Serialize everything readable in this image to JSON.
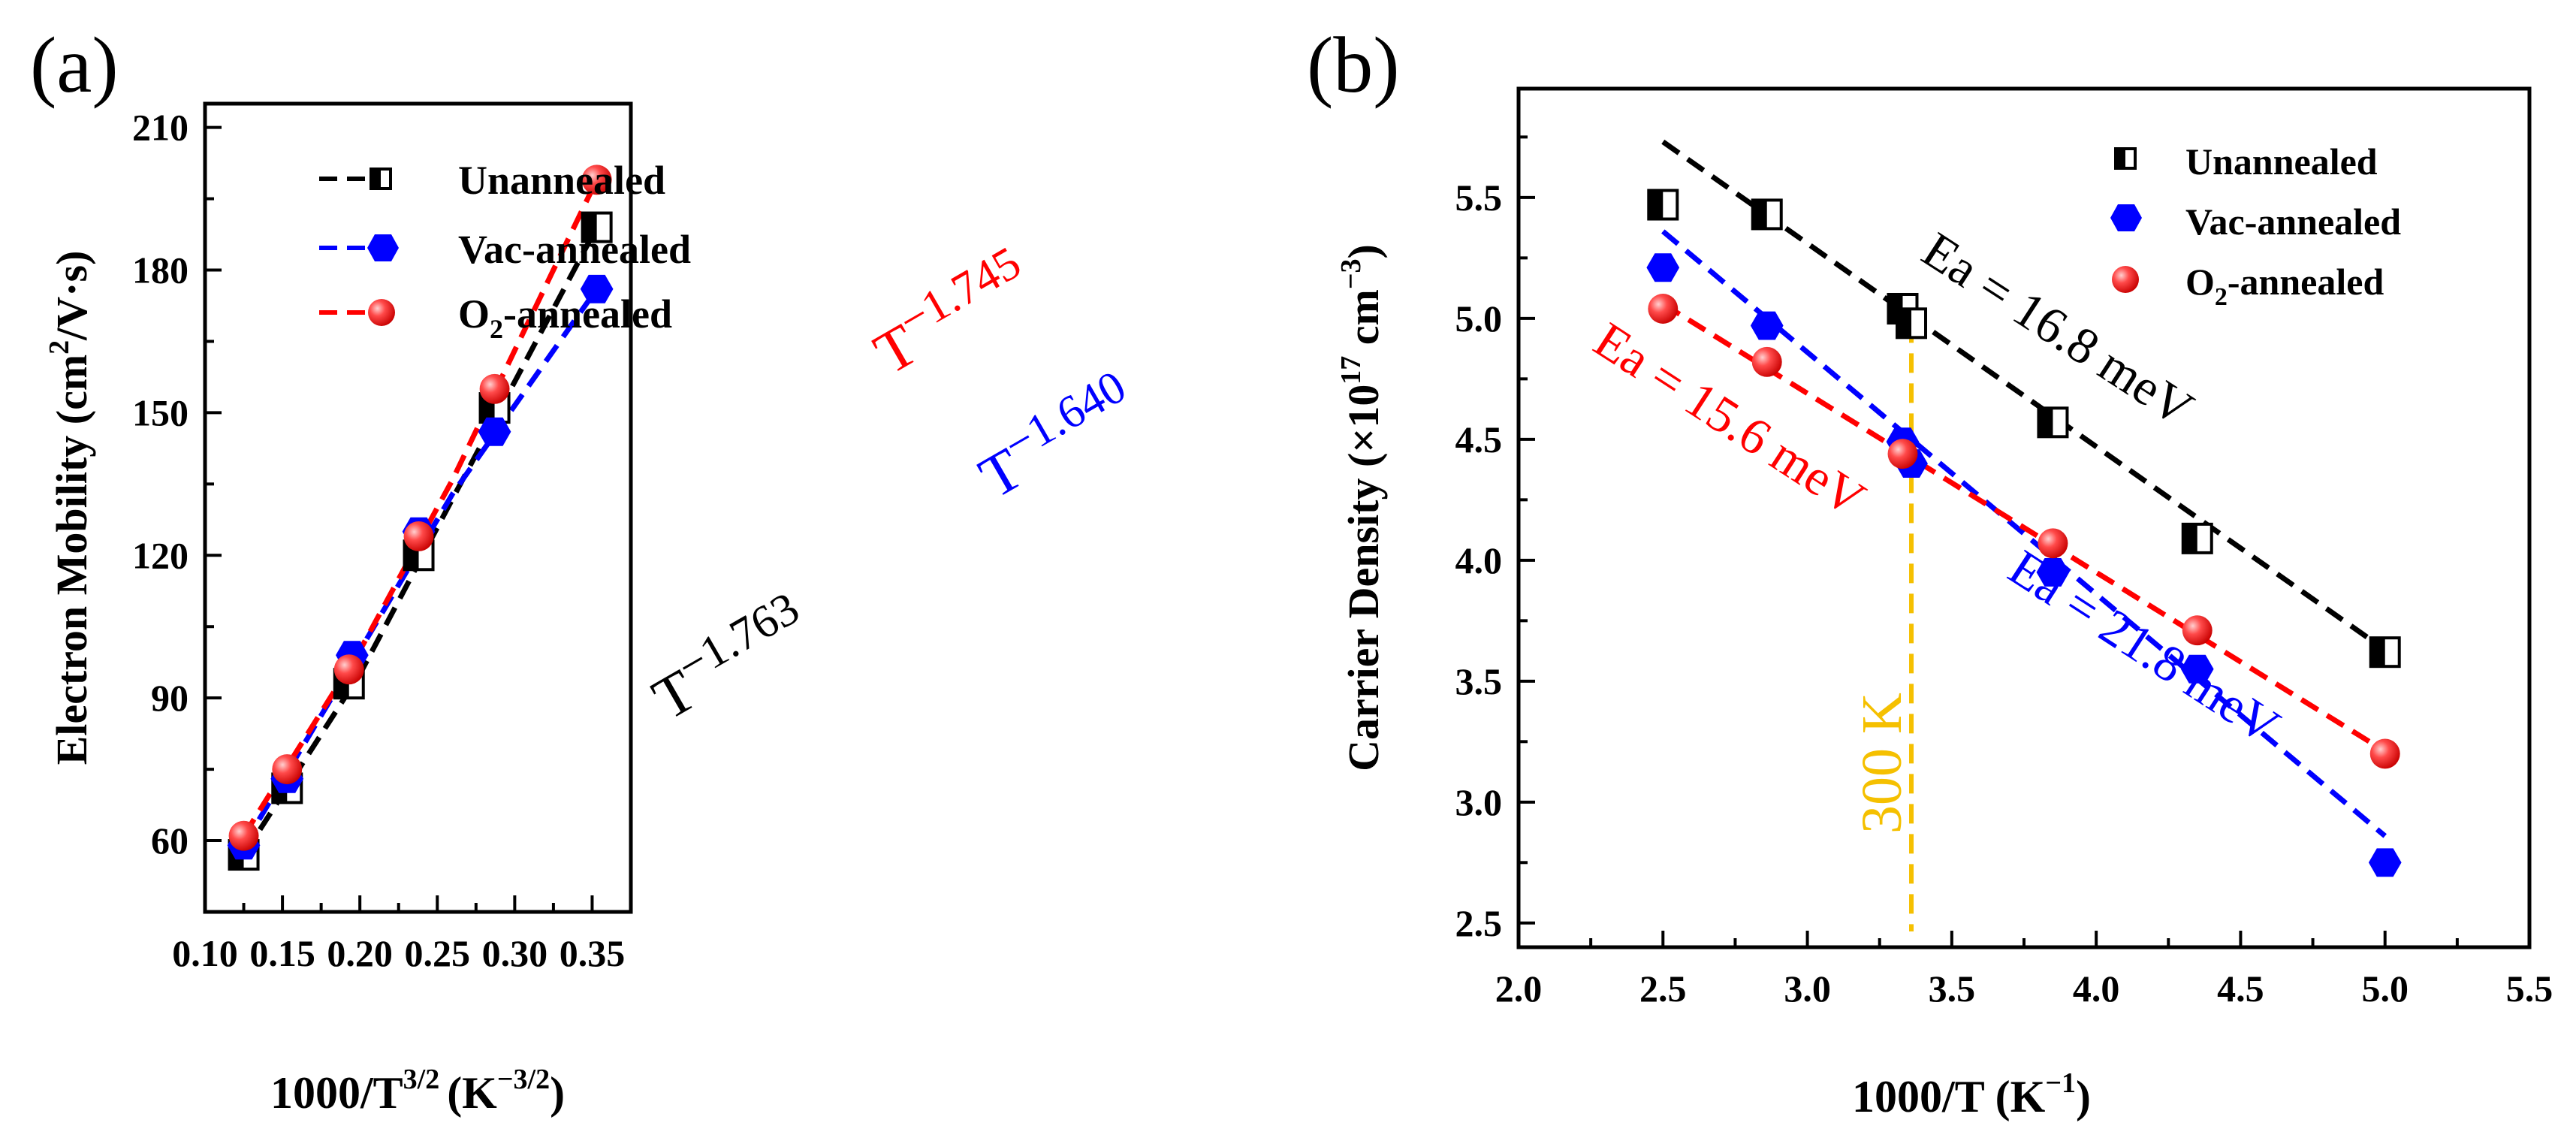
{
  "chart_data": [
    {
      "panel_label": "(a)",
      "type": "scatter",
      "xlabel": "1000/T",
      "xlabel_sup": "3/2",
      "xlabel_unit": "(K",
      "xlabel_unit_sup": "−3/2",
      "xlabel_unit_close": ")",
      "ylabel": "Electron Mobility  (cm",
      "ylabel_sup": "2",
      "ylabel_tail": "/V·s)",
      "xlim": [
        0.1,
        0.375
      ],
      "ylim": [
        45,
        215
      ],
      "xticks": [
        0.1,
        0.15,
        0.2,
        0.25,
        0.3,
        0.35
      ],
      "xtick_labels": [
        "0.10",
        "0.15",
        "0.20",
        "0.25",
        "0.30",
        "0.35"
      ],
      "yticks": [
        60,
        90,
        120,
        150,
        180,
        210
      ],
      "ytick_labels": [
        "60",
        "90",
        "120",
        "150",
        "180",
        "210"
      ],
      "legend_position": "top-left",
      "series": [
        {
          "name": "Unannealed",
          "color": "#000000",
          "marker": "half-square",
          "x": [
            0.125,
            0.153,
            0.193,
            0.238,
            0.287,
            0.353
          ],
          "y": [
            57,
            71,
            93,
            120,
            151,
            189
          ],
          "fit_x": [
            0.125,
            0.2,
            0.26,
            0.353
          ],
          "fit_y": [
            57,
            95,
            132,
            189
          ]
        },
        {
          "name": "Vac-annealed",
          "color": "#0000ff",
          "marker": "hexagon",
          "x": [
            0.125,
            0.153,
            0.195,
            0.238,
            0.287,
            0.353
          ],
          "y": [
            59,
            73,
            99,
            125,
            146,
            176
          ],
          "fit_x": [
            0.125,
            0.2,
            0.26,
            0.353
          ],
          "fit_y": [
            59,
            100,
            133,
            176
          ]
        },
        {
          "name": "O",
          "name_sub": "2",
          "name_tail": "-annealed",
          "color": "#ff0000",
          "marker": "sphere",
          "x": [
            0.125,
            0.153,
            0.193,
            0.238,
            0.287,
            0.353
          ],
          "y": [
            61,
            75,
            96,
            124,
            155,
            199
          ],
          "fit_x": [
            0.125,
            0.2,
            0.26,
            0.353
          ],
          "fit_y": [
            61,
            100,
            136,
            199
          ]
        }
      ],
      "annotations": [
        {
          "base": "T",
          "exp": "−1.763",
          "color": "#000000"
        },
        {
          "base": "T",
          "exp": "−1.745",
          "color": "#ff0000"
        },
        {
          "base": "T",
          "exp": "−1.640",
          "color": "#0000ff"
        }
      ]
    },
    {
      "panel_label": "(b)",
      "type": "scatter",
      "xlabel": "1000/T (K",
      "xlabel_sup": "−1",
      "xlabel_close": ")",
      "ylabel": "Carrier Density (×10",
      "ylabel_sup": "17",
      "ylabel_unit": " cm",
      "ylabel_unit_sup": "−3",
      "ylabel_close": ")",
      "xlim": [
        2.0,
        5.5
      ],
      "ylim": [
        2.4,
        5.95
      ],
      "xticks": [
        2.0,
        2.5,
        3.0,
        3.5,
        4.0,
        4.5,
        5.0,
        5.5
      ],
      "xtick_labels": [
        "2.0",
        "2.5",
        "3.0",
        "3.5",
        "4.0",
        "4.5",
        "5.0",
        "5.5"
      ],
      "yticks": [
        2.5,
        3.0,
        3.5,
        4.0,
        4.5,
        5.0,
        5.5
      ],
      "ytick_labels": [
        "2.5",
        "3.0",
        "3.5",
        "4.0",
        "4.5",
        "5.0",
        "5.5"
      ],
      "legend_position": "top-right",
      "series": [
        {
          "name": "Unannealed",
          "color": "#000000",
          "marker": "half-square",
          "x": [
            2.5,
            2.86,
            3.33,
            3.36,
            3.85,
            4.35,
            5.0
          ],
          "y": [
            5.47,
            5.43,
            5.04,
            4.98,
            4.57,
            4.09,
            3.62
          ],
          "fit_x": [
            2.5,
            5.0
          ],
          "fit_y": [
            5.73,
            3.63
          ]
        },
        {
          "name": "Vac-annealed",
          "color": "#0000ff",
          "marker": "hexagon",
          "x": [
            2.5,
            2.86,
            3.33,
            3.36,
            3.85,
            4.35,
            5.0
          ],
          "y": [
            5.21,
            4.97,
            4.49,
            4.4,
            3.95,
            3.55,
            2.75
          ],
          "fit_x": [
            2.5,
            5.0
          ],
          "fit_y": [
            5.36,
            2.86
          ]
        },
        {
          "name": "O",
          "name_sub": "2",
          "name_tail": "-annealed",
          "color": "#ff0000",
          "marker": "sphere",
          "x": [
            2.5,
            2.86,
            3.33,
            3.85,
            4.35,
            5.0
          ],
          "y": [
            5.04,
            4.82,
            4.44,
            4.07,
            3.71,
            3.2
          ],
          "fit_x": [
            2.5,
            5.0
          ],
          "fit_y": [
            5.06,
            3.21
          ]
        }
      ],
      "reference_line": {
        "x": 3.36,
        "label": "300 K",
        "color": "#f5c000"
      },
      "annotations": [
        {
          "text": "Ea = 16.8 meV",
          "color": "#000000"
        },
        {
          "text": "Ea = 15.6 meV",
          "color": "#ff0000"
        },
        {
          "text": "Ea = 21.8 meV",
          "color": "#0000ff"
        }
      ]
    }
  ]
}
